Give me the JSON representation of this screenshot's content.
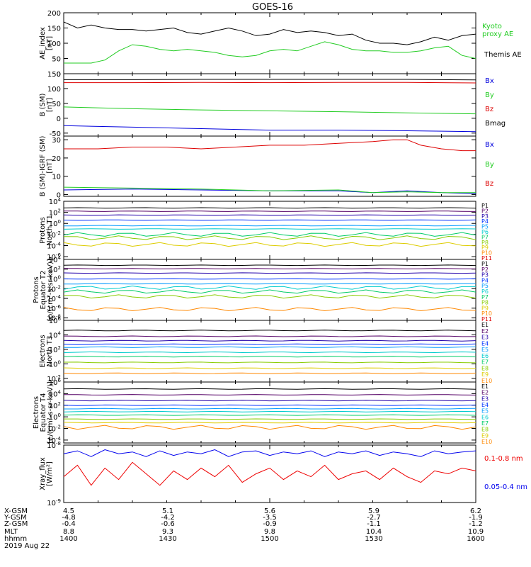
{
  "title": "GOES-16",
  "colors": {
    "black": "#000000",
    "green": "#22cc22",
    "red": "#dd0000",
    "blue": "#0000dd",
    "channels": [
      "#000000",
      "#550066",
      "#2200aa",
      "#0033ff",
      "#0099ff",
      "#00cccc",
      "#00cc66",
      "#88cc00",
      "#ddcc00",
      "#ff8800",
      "#dd0000"
    ],
    "xray_long": "#ee0000",
    "xray_short": "#0000ee"
  },
  "chart_data": [
    {
      "type": "line",
      "panel": "ae",
      "ylabel": "AE_index [nT]",
      "yticks": [
        "200",
        "150",
        "100",
        "50",
        "0"
      ],
      "ylim": [
        0,
        200
      ],
      "series": [
        {
          "name": "Kyoto proxy AE",
          "color_key": "green",
          "label_lines": [
            "Kyoto",
            "proxy AE"
          ],
          "x": [
            0,
            2,
            4,
            6,
            8,
            10,
            12,
            14,
            16,
            18,
            20,
            22,
            24,
            26,
            28,
            30,
            32,
            34,
            36,
            38,
            40,
            42,
            44,
            46,
            48,
            50,
            52,
            54,
            56,
            58,
            60
          ],
          "y": [
            35,
            35,
            35,
            45,
            75,
            95,
            90,
            80,
            75,
            80,
            75,
            70,
            60,
            55,
            60,
            75,
            80,
            75,
            90,
            105,
            95,
            80,
            75,
            75,
            70,
            70,
            75,
            85,
            90,
            60,
            50
          ]
        },
        {
          "name": "Themis AE",
          "color_key": "black",
          "label_lines": [
            "Themis AE"
          ],
          "x": [
            0,
            2,
            4,
            6,
            8,
            10,
            12,
            14,
            16,
            18,
            20,
            22,
            24,
            26,
            28,
            30,
            32,
            34,
            36,
            38,
            40,
            42,
            44,
            46,
            48,
            50,
            52,
            54,
            56,
            58,
            60
          ],
          "y": [
            170,
            150,
            160,
            150,
            145,
            145,
            140,
            145,
            150,
            135,
            130,
            140,
            150,
            140,
            125,
            130,
            145,
            135,
            140,
            135,
            125,
            130,
            110,
            100,
            100,
            95,
            105,
            120,
            110,
            125,
            130
          ]
        }
      ]
    },
    {
      "type": "line",
      "panel": "b",
      "ylabel": "B (SM) [nT]",
      "yticks": [
        "150",
        "100",
        "50",
        "0",
        "-50"
      ],
      "ylim": [
        -60,
        150
      ],
      "series": [
        {
          "name": "Bx",
          "color_key": "blue",
          "x": [
            0,
            10,
            20,
            30,
            40,
            50,
            60
          ],
          "y": [
            -25,
            -30,
            -35,
            -40,
            -40,
            -42,
            -45
          ]
        },
        {
          "name": "By",
          "color_key": "green",
          "x": [
            0,
            10,
            20,
            30,
            40,
            50,
            60
          ],
          "y": [
            38,
            32,
            28,
            25,
            22,
            18,
            15
          ]
        },
        {
          "name": "Bz",
          "color_key": "red",
          "x": [
            0,
            10,
            20,
            30,
            40,
            50,
            60
          ],
          "y": [
            120,
            120,
            121,
            120,
            121,
            121,
            119
          ]
        },
        {
          "name": "Bmag",
          "color_key": "black",
          "x": [
            0,
            10,
            20,
            30,
            40,
            50,
            60
          ],
          "y": [
            130,
            130,
            131,
            131,
            131,
            131,
            129
          ]
        }
      ]
    },
    {
      "type": "line",
      "panel": "bdiff",
      "ylabel": "B (SM)-IGRF (SM) [nT]",
      "yticks": [
        "30",
        "20",
        "10",
        "0"
      ],
      "ylim": [
        -1,
        32
      ],
      "series": [
        {
          "name": "Bx",
          "color_key": "blue",
          "x": [
            0,
            10,
            20,
            30,
            40,
            45,
            50,
            55,
            60
          ],
          "y": [
            2.5,
            3,
            2.5,
            2,
            2,
            1,
            2,
            1,
            0.5
          ]
        },
        {
          "name": "By",
          "color_key": "green",
          "x": [
            0,
            10,
            20,
            30,
            40,
            45,
            50,
            55,
            60
          ],
          "y": [
            4,
            3.5,
            3,
            2,
            2.5,
            1,
            1.5,
            1,
            1
          ]
        },
        {
          "name": "Bz",
          "color_key": "red",
          "x": [
            0,
            5,
            10,
            15,
            20,
            25,
            30,
            35,
            40,
            45,
            48,
            50,
            52,
            55,
            58,
            60
          ],
          "y": [
            25,
            25,
            26,
            26,
            25,
            26,
            27,
            27,
            28,
            29,
            30,
            30,
            27,
            25,
            24,
            24
          ]
        }
      ]
    },
    {
      "type": "line",
      "panel": "pnorth",
      "ylabel": "Protons North T1",
      "yticks": [
        "10^4",
        "10^2",
        "10^0",
        "10^-2",
        "10^-4",
        "10^-6"
      ],
      "ylim": [
        -6.5,
        4
      ],
      "channels": [
        "P1",
        "P2",
        "P3",
        "P4",
        "P5",
        "P6",
        "P7",
        "P8",
        "P9",
        "P10",
        "P11"
      ],
      "series": [
        {
          "name": "P1",
          "y_log10": 2.8
        },
        {
          "name": "P2",
          "y_log10": 2.2
        },
        {
          "name": "P3",
          "y_log10": 1.5
        },
        {
          "name": "P4",
          "y_log10": 0.6
        },
        {
          "name": "P5",
          "y_log10": -0.4
        },
        {
          "name": "P6",
          "y_log10": -1.0
        },
        {
          "name": "P7",
          "y_log10": -2.0
        },
        {
          "name": "P8",
          "y_log10": -2.6
        },
        {
          "name": "P9",
          "y_log10": -3.8
        }
      ]
    },
    {
      "type": "line",
      "panel": "pequator",
      "ylabel": "Protons Equator T2 [p/(cm²-s-sr-keV)]",
      "yticks": [
        "10^4",
        "10^2",
        "10^0",
        "10^-2",
        "10^-4",
        "10^-6",
        "10^-8"
      ],
      "ylim": [
        -8.5,
        4
      ],
      "channels": [
        "P1",
        "P2",
        "P3",
        "P4",
        "P5",
        "P6",
        "P7",
        "P8",
        "P9",
        "P10",
        "P11"
      ],
      "series": [
        {
          "name": "P1",
          "y_log10": 2.8
        },
        {
          "name": "P2",
          "y_log10": 2.1
        },
        {
          "name": "P3",
          "y_log10": 1.2
        },
        {
          "name": "P4",
          "y_log10": 0.0
        },
        {
          "name": "P5",
          "y_log10": -1.0
        },
        {
          "name": "P6",
          "y_log10": -1.8
        },
        {
          "name": "P7",
          "y_log10": -2.6
        },
        {
          "name": "P8",
          "y_log10": -3.6
        },
        {
          "name": "P10",
          "y_log10": -6.2
        }
      ]
    },
    {
      "type": "line",
      "panel": "enorth",
      "ylabel": "Electrons North T3",
      "yticks": [
        "10^6",
        "10^4",
        "10^2",
        "10^0",
        "10^-2"
      ],
      "ylim": [
        -2.5,
        6
      ],
      "channels": [
        "E1",
        "E2",
        "E3",
        "E4",
        "E5",
        "E6",
        "E7",
        "E8",
        "E9",
        "E10"
      ],
      "series": [
        {
          "name": "E1",
          "y_log10": 4.6
        },
        {
          "name": "E2",
          "y_log10": 3.8
        },
        {
          "name": "E3",
          "y_log10": 3.2
        },
        {
          "name": "E4",
          "y_log10": 2.7
        },
        {
          "name": "E5",
          "y_log10": 2.3
        },
        {
          "name": "E6",
          "y_log10": 1.6
        },
        {
          "name": "E7",
          "y_log10": 1.0
        },
        {
          "name": "E8",
          "y_log10": 0.2
        },
        {
          "name": "E9",
          "y_log10": -0.6
        },
        {
          "name": "E10",
          "y_log10": -1.3
        }
      ]
    },
    {
      "type": "line",
      "panel": "eequator",
      "ylabel": "Electrons Equator T4 [e/(cm²-s-sr-keV)]",
      "yticks": [
        "10^6",
        "10^4",
        "10^2",
        "10^0",
        "10^-2",
        "10^-4"
      ],
      "ylim": [
        -4.5,
        6
      ],
      "channels": [
        "E1",
        "E2",
        "E3",
        "E4",
        "E5",
        "E6",
        "E7",
        "E8",
        "E9",
        "E10"
      ],
      "series": [
        {
          "name": "E1",
          "y_log10": 4.8
        },
        {
          "name": "E2",
          "y_log10": 3.8
        },
        {
          "name": "E3",
          "y_log10": 2.8
        },
        {
          "name": "E4",
          "y_log10": 2.0
        },
        {
          "name": "E5",
          "y_log10": 1.4
        },
        {
          "name": "E6",
          "y_log10": 0.9
        },
        {
          "name": "E7",
          "y_log10": 0.3
        },
        {
          "name": "E8",
          "y_log10": -0.4
        },
        {
          "name": "E9",
          "y_log10": -1.0
        },
        {
          "name": "E10",
          "y_log10": -1.8
        }
      ]
    },
    {
      "type": "line",
      "panel": "xray",
      "ylabel": "Xray_flux [W/m²]",
      "yticks": [
        "10^-8",
        "10^-9"
      ],
      "ylim": [
        -9,
        -8
      ],
      "series": [
        {
          "name": "0.1-0.8 nm",
          "color_key": "xray_long",
          "label": "0.1-0.8 nm",
          "x": [
            0,
            2,
            4,
            6,
            8,
            10,
            12,
            14,
            16,
            18,
            20,
            22,
            24,
            26,
            28,
            30,
            32,
            34,
            36,
            38,
            40,
            42,
            44,
            46,
            48,
            50,
            52,
            54,
            56,
            58,
            60
          ],
          "y_log10": [
            -8.55,
            -8.35,
            -8.7,
            -8.4,
            -8.6,
            -8.3,
            -8.5,
            -8.7,
            -8.45,
            -8.6,
            -8.4,
            -8.55,
            -8.35,
            -8.65,
            -8.5,
            -8.4,
            -8.6,
            -8.45,
            -8.55,
            -8.35,
            -8.6,
            -8.5,
            -8.45,
            -8.6,
            -8.4,
            -8.55,
            -8.65,
            -8.45,
            -8.5,
            -8.4,
            -8.45
          ]
        },
        {
          "name": "0.05-0.4 nm",
          "color_key": "xray_short",
          "label": "0.05-0.4 nm",
          "x": [
            0,
            2,
            4,
            6,
            8,
            10,
            12,
            14,
            16,
            18,
            20,
            22,
            24,
            26,
            28,
            30,
            32,
            34,
            36,
            38,
            40,
            42,
            44,
            46,
            48,
            50,
            52,
            54,
            56,
            58,
            60
          ],
          "y_log10": [
            -8.15,
            -8.1,
            -8.2,
            -8.08,
            -8.15,
            -8.12,
            -8.2,
            -8.1,
            -8.18,
            -8.12,
            -8.15,
            -8.08,
            -8.2,
            -8.12,
            -8.1,
            -8.18,
            -8.12,
            -8.15,
            -8.1,
            -8.2,
            -8.12,
            -8.15,
            -8.1,
            -8.18,
            -8.12,
            -8.15,
            -8.2,
            -8.1,
            -8.15,
            -8.12,
            -8.1
          ]
        }
      ]
    }
  ],
  "footer": {
    "rows": [
      {
        "label": "X-GSM",
        "values": [
          "4.5",
          "5.1",
          "5.6",
          "5.9",
          "6.2"
        ]
      },
      {
        "label": "Y-GSM",
        "values": [
          "-4.8",
          "-4.2",
          "-3.5",
          "-2.7",
          "-1.9"
        ]
      },
      {
        "label": "Z-GSM",
        "values": [
          "-0.4",
          "-0.6",
          "-0.9",
          "-1.1",
          "-1.2"
        ]
      },
      {
        "label": "MLT",
        "values": [
          "8.8",
          "9.3",
          "9.8",
          "10.4",
          "10.9"
        ]
      },
      {
        "label": "hhmm",
        "values": [
          "1400",
          "1430",
          "1500",
          "1530",
          "1600"
        ]
      }
    ],
    "date": "2019 Aug 22"
  }
}
